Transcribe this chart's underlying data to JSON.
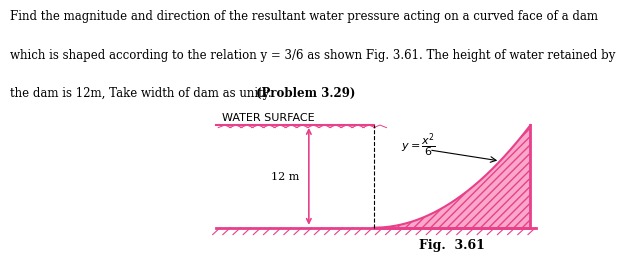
{
  "fig_label": "Fig.  3.61",
  "water_surface_label": "WATER SURFACE",
  "height_label": "12 m",
  "curve_color": "#E8408A",
  "fill_color": "#F9A8C9",
  "hatch_color": "#E8408A",
  "ground_color": "#E8408A",
  "text_color": "#000000",
  "background": "#ffffff",
  "line1": "Find the magnitude and direction of the resultant water pressure acting on a curved face of a dam",
  "line2": "which is shaped according to the relation y = 3/6 as shown Fig. 3.61. The height of water retained by",
  "line3a": "the dam is 12m, Take width of dam as unity. ",
  "line3b": "(Problem 3.29)",
  "text_fontsize": 8.5,
  "fig_fontsize": 9
}
